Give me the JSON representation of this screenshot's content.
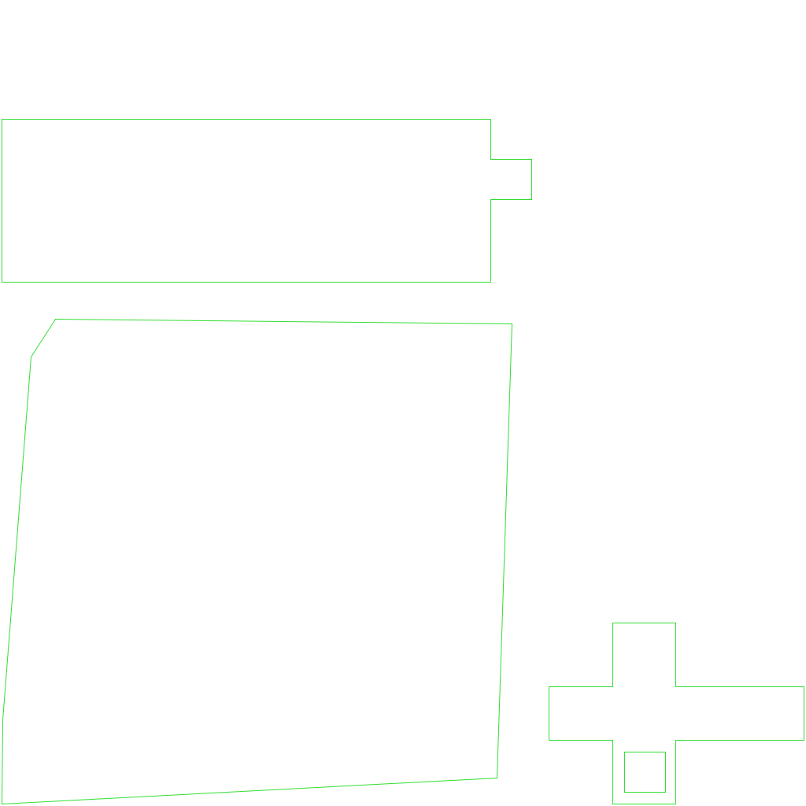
{
  "background_color": "#ffffff",
  "outline_color": "#33dd33",
  "shapes": [
    {
      "name": "rectangle-with-tab-outline",
      "kind": "polygon"
    },
    {
      "name": "quadrilateral-outline",
      "kind": "polygon"
    },
    {
      "name": "cross-outline",
      "kind": "polygon"
    },
    {
      "name": "inner-square-outline",
      "kind": "polygon"
    }
  ]
}
